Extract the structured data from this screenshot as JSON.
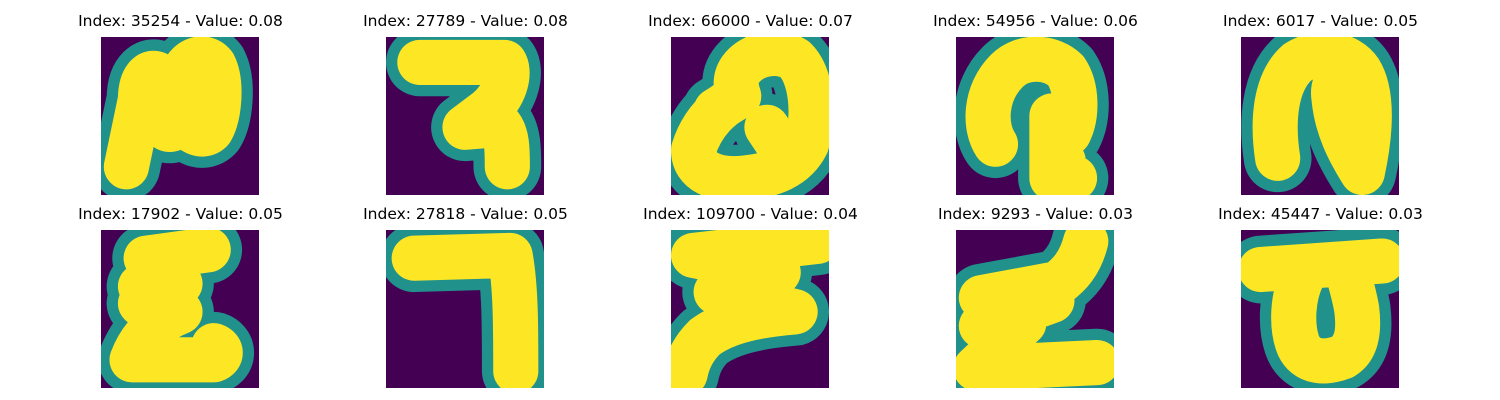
{
  "colors": {
    "background": "#440154",
    "edge": "#21918c",
    "stroke": "#fde725"
  },
  "panels": [
    {
      "title": "Index: 35254 - Value: 0.08"
    },
    {
      "title": "Index: 27789 - Value: 0.08"
    },
    {
      "title": "Index: 66000 - Value: 0.07"
    },
    {
      "title": "Index: 54956 - Value: 0.06"
    },
    {
      "title": "Index: 6017 - Value: 0.05"
    },
    {
      "title": "Index: 17902 - Value: 0.05"
    },
    {
      "title": "Index: 27818 - Value: 0.05"
    },
    {
      "title": "Index: 109700 - Value: 0.04"
    },
    {
      "title": "Index: 9293 - Value: 0.03"
    },
    {
      "title": "Index: 45447 - Value: 0.03"
    }
  ]
}
